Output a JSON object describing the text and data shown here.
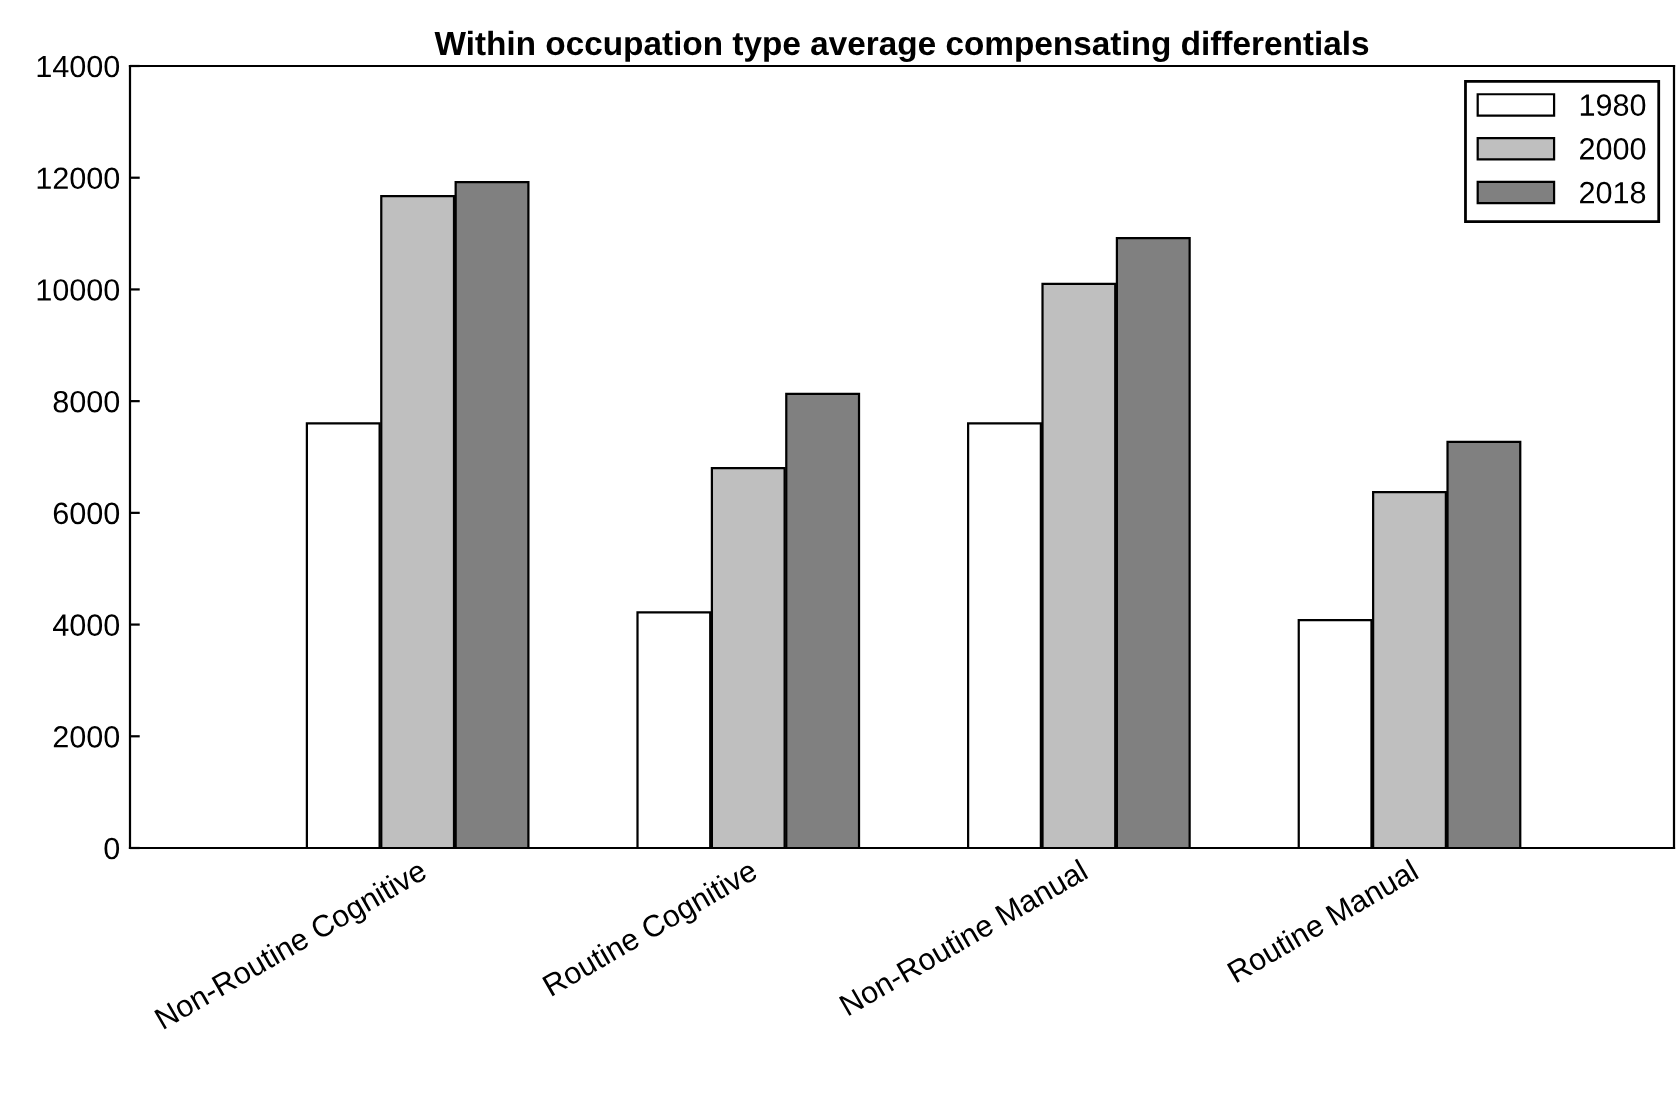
{
  "chart_data": {
    "type": "bar",
    "title": "Within occupation type average compensating differentials",
    "categories": [
      "Non-Routine Cognitive",
      "Routine Cognitive",
      "Non-Routine Manual",
      "Routine Manual"
    ],
    "series": [
      {
        "name": "1980",
        "color": "#ffffff",
        "values": [
          7600,
          4220,
          7600,
          4080
        ]
      },
      {
        "name": "2000",
        "color": "#bfbfbf",
        "values": [
          11670,
          6800,
          10100,
          6370
        ]
      },
      {
        "name": "2018",
        "color": "#808080",
        "values": [
          11920,
          8130,
          10920,
          7270
        ]
      }
    ],
    "ylim": [
      0,
      14000
    ],
    "yticks": [
      0,
      2000,
      4000,
      6000,
      8000,
      10000,
      12000,
      14000
    ],
    "grid": false,
    "legend": "top right"
  }
}
